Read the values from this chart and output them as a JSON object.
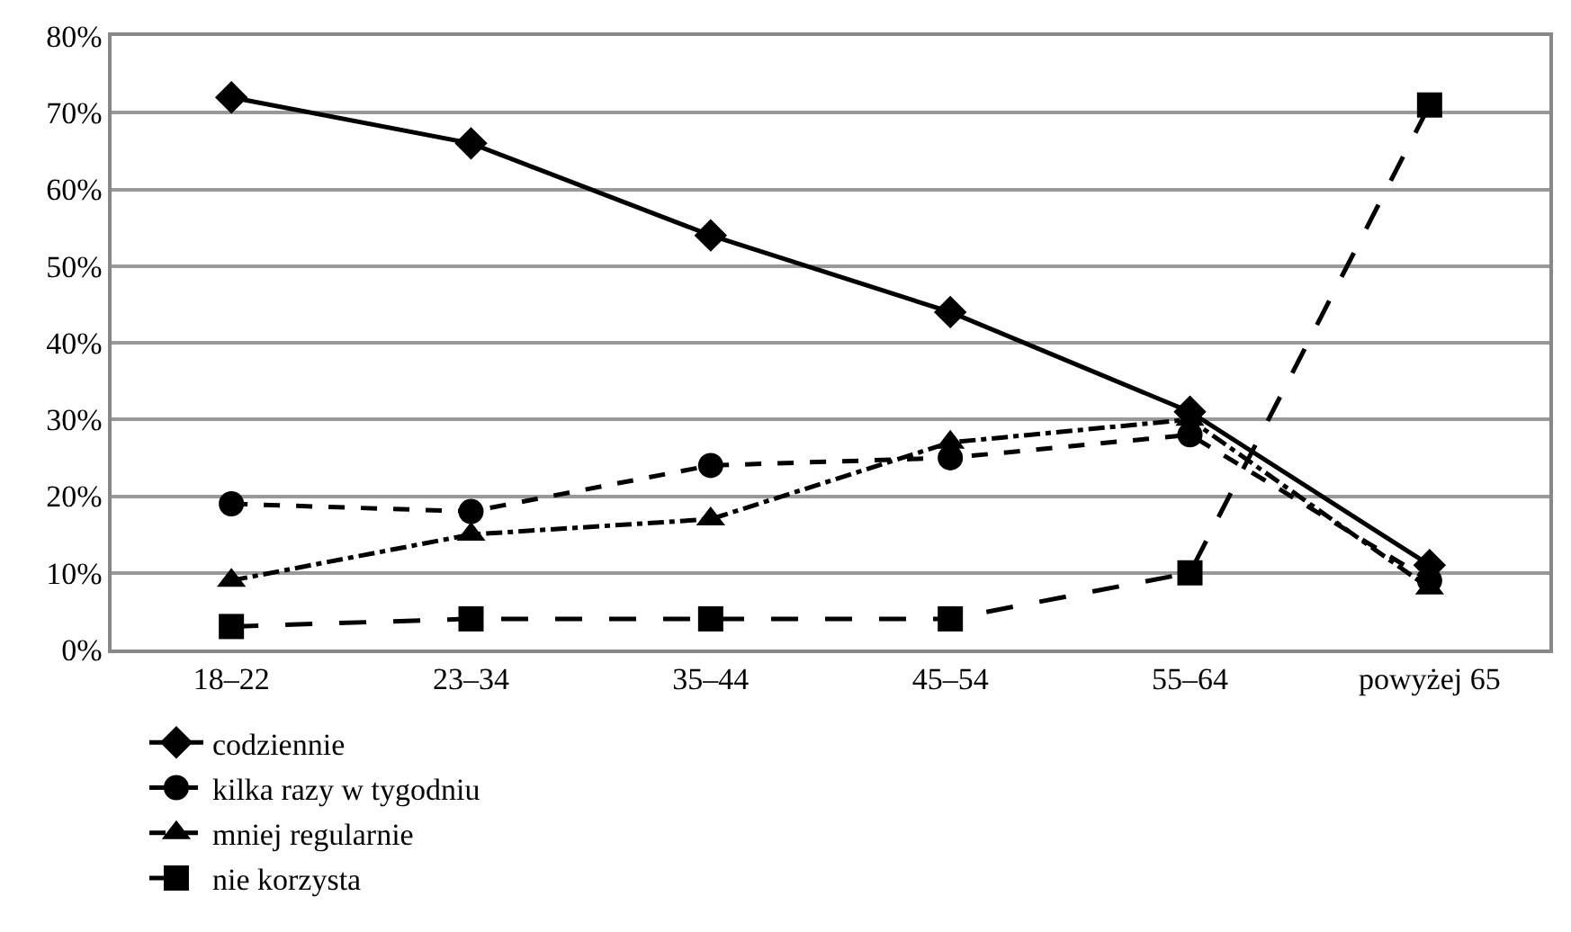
{
  "chart_data": {
    "type": "line",
    "categories": [
      "18–22",
      "23–34",
      "35–44",
      "45–54",
      "55–64",
      "powyżej 65"
    ],
    "series": [
      {
        "name": "codziennie",
        "color": "#000000",
        "marker": "diamond",
        "line_style": "solid",
        "values": [
          72,
          66,
          54,
          44,
          31,
          11
        ]
      },
      {
        "name": "kilka razy w tygodniu",
        "color": "#000000",
        "marker": "circle",
        "line_style": "dashed",
        "values": [
          19,
          18,
          24,
          25,
          28,
          9
        ]
      },
      {
        "name": "mniej regularnie",
        "color": "#000000",
        "marker": "triangle",
        "line_style": "dashdot",
        "values": [
          9,
          15,
          17,
          27,
          30,
          8
        ]
      },
      {
        "name": "nie korzysta",
        "color": "#000000",
        "marker": "square",
        "line_style": "longdash",
        "values": [
          3,
          4,
          4,
          4,
          10,
          71
        ]
      }
    ],
    "ylim": [
      0,
      80
    ],
    "yticks": [
      {
        "value": 0,
        "label": "0%"
      },
      {
        "value": 10,
        "label": "10%"
      },
      {
        "value": 20,
        "label": "20%"
      },
      {
        "value": 30,
        "label": "30%"
      },
      {
        "value": 40,
        "label": "40%"
      },
      {
        "value": 50,
        "label": "50%"
      },
      {
        "value": 60,
        "label": "60%"
      },
      {
        "value": 70,
        "label": "70%"
      },
      {
        "value": 80,
        "label": "80%"
      }
    ],
    "grid": "y",
    "legend": "bottom"
  }
}
